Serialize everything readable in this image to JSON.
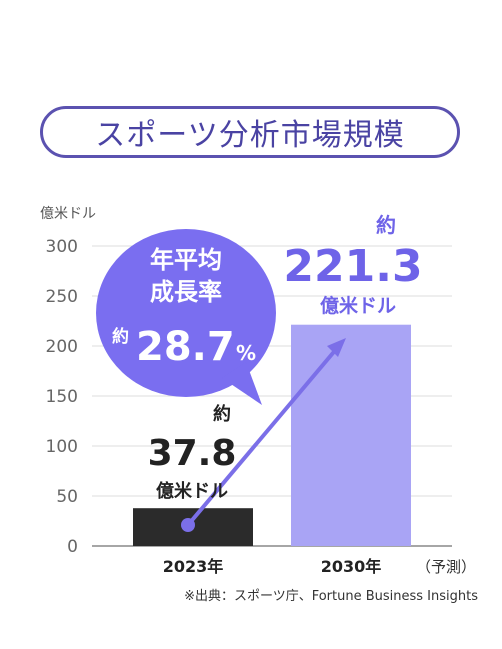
{
  "title": "スポーツ分析市場規模",
  "colors": {
    "title_border": "#5b52b0",
    "bar_2023": "#2b2b2b",
    "bar_2030": "#a9a4f5",
    "bubble": "#7a6ef0",
    "arrow": "#7b6fe8",
    "value_2030": "#6e63e8"
  },
  "chart_data": {
    "type": "bar",
    "unit": "億米ドル",
    "categories": [
      "2023年",
      "2030年"
    ],
    "values": [
      37.8,
      221.3
    ],
    "ylim": [
      0,
      300
    ],
    "yticks": [
      0,
      50,
      100,
      150,
      200,
      250,
      300
    ],
    "forecast_note": "（予測）",
    "grid": true,
    "annotations": {
      "bar1": {
        "prefix": "約",
        "value": "37.8",
        "unit": "億米ドル"
      },
      "bar2": {
        "prefix": "約",
        "value": "221.3",
        "unit": "億米ドル"
      },
      "cagr": {
        "line1": "年平均",
        "line2": "成長率",
        "prefix": "約",
        "value": "28.7",
        "suffix": "%"
      }
    }
  },
  "source": "※出典：スポーツ庁、Fortune Business Insights"
}
